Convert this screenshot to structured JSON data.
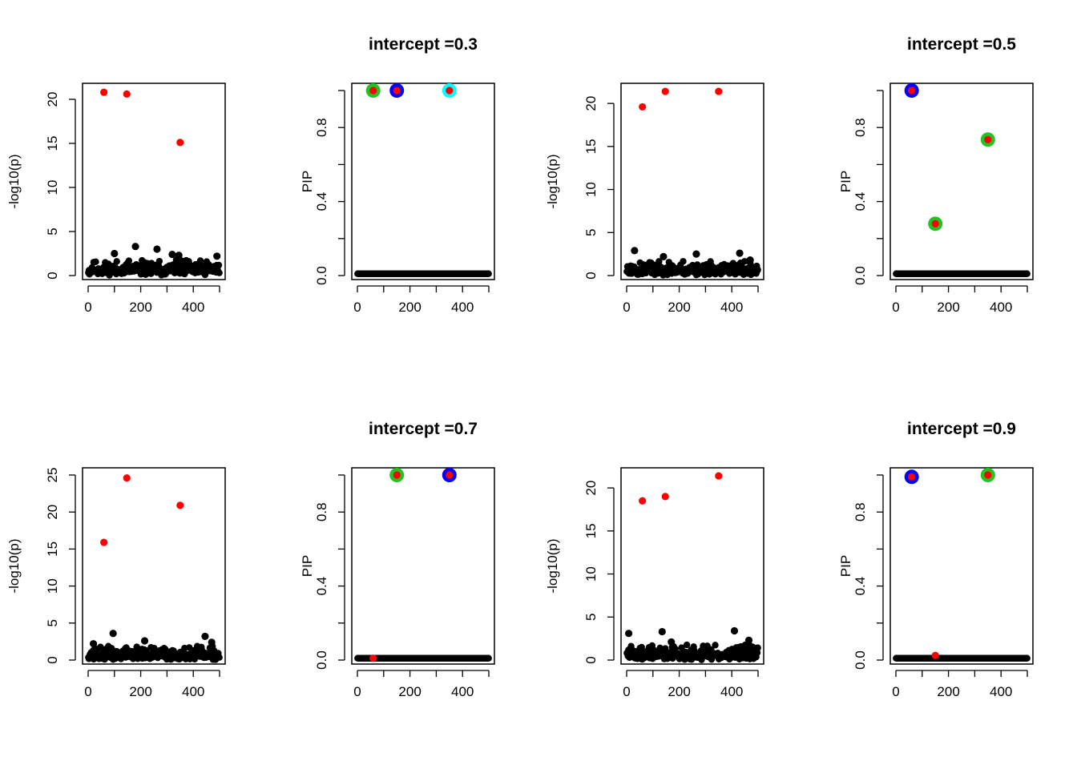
{
  "colors": {
    "black": "#000000",
    "red": "#FF0000",
    "green": "#22C322",
    "blue": "#0000FF",
    "cyan": "#00FFFF"
  },
  "chart_data": [
    {
      "type": "scatter",
      "title": "",
      "xlabel": "",
      "ylabel": "-log10(p)",
      "xlim": [
        0,
        500
      ],
      "ylim": [
        0,
        21
      ],
      "xticks": [
        0,
        200,
        400
      ],
      "yticks": [
        0,
        5,
        10,
        15,
        20
      ],
      "grid": false,
      "background": {
        "n": 500,
        "seed": 11,
        "base_max": 1.6,
        "extra": [
          [
            100,
            2.5
          ],
          [
            180,
            3.3
          ],
          [
            262,
            3.0
          ],
          [
            320,
            2.4
          ],
          [
            490,
            2.2
          ],
          [
            345,
            2.3
          ]
        ]
      },
      "red_points": [
        [
          60,
          20.8
        ],
        [
          147,
          20.6
        ],
        [
          350,
          15.1
        ]
      ],
      "rings": []
    },
    {
      "type": "scatter",
      "title": "intercept =0.3",
      "xlabel": "",
      "ylabel": "PIP",
      "xlim": [
        0,
        500
      ],
      "ylim": [
        0,
        1
      ],
      "xticks": [
        0,
        200,
        400
      ],
      "yticks": [
        0.0,
        0.4,
        0.8
      ],
      "ytick_labels": [
        "0.0",
        "0.4",
        "0.8"
      ],
      "grid": false,
      "baseline": 0.01,
      "red_points": [
        [
          60,
          1.0
        ],
        [
          150,
          1.0
        ],
        [
          350,
          1.0
        ]
      ],
      "rings": [
        {
          "x": 60,
          "y": 1.0,
          "color": "green"
        },
        {
          "x": 150,
          "y": 1.0,
          "color": "blue"
        },
        {
          "x": 350,
          "y": 1.0,
          "color": "cyan"
        }
      ]
    },
    {
      "type": "scatter",
      "title": "",
      "xlabel": "",
      "ylabel": "-log10(p)",
      "xlim": [
        0,
        500
      ],
      "ylim": [
        0,
        21.5
      ],
      "xticks": [
        0,
        200,
        400
      ],
      "yticks": [
        0,
        5,
        10,
        15,
        20
      ],
      "grid": false,
      "background": {
        "n": 500,
        "seed": 23,
        "base_max": 1.5,
        "extra": [
          [
            30,
            2.9
          ],
          [
            140,
            2.2
          ],
          [
            265,
            2.5
          ],
          [
            430,
            2.6
          ],
          [
            470,
            1.8
          ]
        ]
      },
      "red_points": [
        [
          60,
          19.6
        ],
        [
          147,
          21.4
        ],
        [
          350,
          21.4
        ]
      ],
      "rings": []
    },
    {
      "type": "scatter",
      "title": "intercept =0.5",
      "xlabel": "",
      "ylabel": "PIP",
      "xlim": [
        0,
        500
      ],
      "ylim": [
        0,
        1
      ],
      "xticks": [
        0,
        200,
        400
      ],
      "yticks": [
        0.0,
        0.4,
        0.8
      ],
      "ytick_labels": [
        "0.0",
        "0.4",
        "0.8"
      ],
      "grid": false,
      "baseline": 0.01,
      "red_points": [
        [
          60,
          1.0
        ],
        [
          150,
          0.28
        ],
        [
          350,
          0.735
        ]
      ],
      "rings": [
        {
          "x": 60,
          "y": 1.0,
          "color": "blue"
        },
        {
          "x": 150,
          "y": 0.28,
          "color": "green"
        },
        {
          "x": 350,
          "y": 0.735,
          "color": "green"
        }
      ]
    },
    {
      "type": "scatter",
      "title": "",
      "xlabel": "",
      "ylabel": "-log10(p)",
      "xlim": [
        0,
        500
      ],
      "ylim": [
        0,
        25
      ],
      "xticks": [
        0,
        200,
        400
      ],
      "yticks": [
        0,
        5,
        10,
        15,
        20,
        25
      ],
      "grid": false,
      "background": {
        "n": 500,
        "seed": 37,
        "base_max": 1.7,
        "extra": [
          [
            20,
            2.2
          ],
          [
            95,
            3.6
          ],
          [
            215,
            2.6
          ],
          [
            445,
            3.2
          ],
          [
            470,
            2.4
          ]
        ]
      },
      "red_points": [
        [
          60,
          15.9
        ],
        [
          147,
          24.6
        ],
        [
          350,
          20.9
        ]
      ],
      "rings": []
    },
    {
      "type": "scatter",
      "title": "intercept =0.7",
      "xlabel": "",
      "ylabel": "PIP",
      "xlim": [
        0,
        500
      ],
      "ylim": [
        0,
        1
      ],
      "xticks": [
        0,
        200,
        400
      ],
      "yticks": [
        0.0,
        0.4,
        0.8
      ],
      "ytick_labels": [
        "0.0",
        "0.4",
        "0.8"
      ],
      "grid": false,
      "baseline": 0.01,
      "red_points": [
        [
          60,
          0.01
        ],
        [
          150,
          1.0
        ],
        [
          350,
          1.0
        ]
      ],
      "rings": [
        {
          "x": 150,
          "y": 1.0,
          "color": "green"
        },
        {
          "x": 350,
          "y": 1.0,
          "color": "blue"
        }
      ]
    },
    {
      "type": "scatter",
      "title": "",
      "xlabel": "",
      "ylabel": "-log10(p)",
      "xlim": [
        0,
        500
      ],
      "ylim": [
        0,
        21.5
      ],
      "xticks": [
        0,
        200,
        400
      ],
      "yticks": [
        0,
        5,
        10,
        15,
        20
      ],
      "grid": false,
      "background": {
        "n": 500,
        "seed": 51,
        "base_max": 1.6,
        "extra": [
          [
            8,
            3.1
          ],
          [
            135,
            3.3
          ],
          [
            410,
            3.4
          ],
          [
            465,
            2.3
          ],
          [
            170,
            2.1
          ]
        ]
      },
      "red_points": [
        [
          60,
          18.5
        ],
        [
          147,
          19.0
        ],
        [
          350,
          21.4
        ]
      ],
      "rings": []
    },
    {
      "type": "scatter",
      "title": "intercept =0.9",
      "xlabel": "",
      "ylabel": "PIP",
      "xlim": [
        0,
        500
      ],
      "ylim": [
        0,
        1
      ],
      "xticks": [
        0,
        200,
        400
      ],
      "yticks": [
        0.0,
        0.4,
        0.8
      ],
      "ytick_labels": [
        "0.0",
        "0.4",
        "0.8"
      ],
      "grid": false,
      "baseline": 0.01,
      "red_points": [
        [
          60,
          0.99
        ],
        [
          150,
          0.025
        ],
        [
          350,
          1.0
        ]
      ],
      "rings": [
        {
          "x": 60,
          "y": 0.99,
          "color": "blue"
        },
        {
          "x": 350,
          "y": 1.0,
          "color": "green"
        }
      ]
    }
  ]
}
